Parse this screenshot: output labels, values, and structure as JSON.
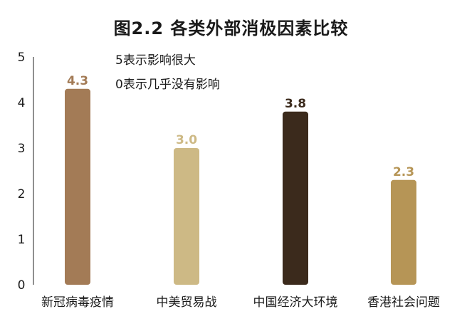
{
  "chart_data": {
    "type": "bar",
    "title": "图2.2  各类外部消极因素比较",
    "notes": [
      "5表示影响很大",
      "0表示几乎没有影响"
    ],
    "categories": [
      "新冠病毒疫情",
      "中美贸易战",
      "中国经济大环境",
      "香港社会问题"
    ],
    "values": [
      4.3,
      3.0,
      3.8,
      2.3
    ],
    "value_labels": [
      "4.3",
      "3.0",
      "3.8",
      "2.3"
    ],
    "colors": [
      "#a37b56",
      "#cdb985",
      "#3b2a1c",
      "#b69556"
    ],
    "label_colors": [
      "#a37b56",
      "#cdb985",
      "#3b2a1c",
      "#b69556"
    ],
    "yticks": [
      "0",
      "1",
      "2",
      "3",
      "4",
      "5"
    ],
    "ylim": [
      0,
      5
    ],
    "grid": false,
    "legend": "none"
  }
}
